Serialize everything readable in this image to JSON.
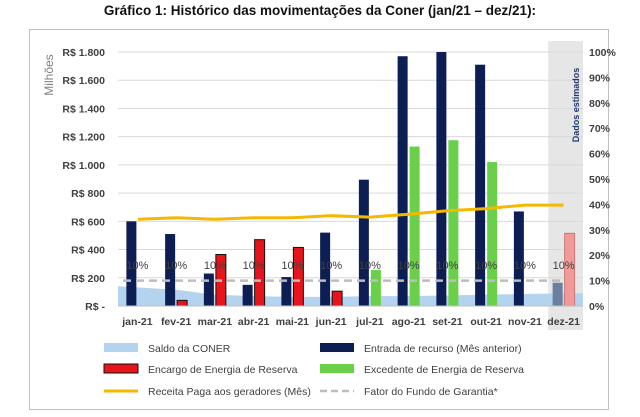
{
  "title": "Gráfico 1: Histórico das movimentações da Coner (jan/21 – dez/21):",
  "chart_data": {
    "type": "bar",
    "title": "Gráfico 1: Histórico das movimentações da Coner (jan/21 – dez/21):",
    "ylabel": "Milhões",
    "ylim": [
      0,
      1800
    ],
    "y2lim": [
      0,
      1
    ],
    "grid": true,
    "legend_position": "bottom",
    "estimated_label": "Dados estimados",
    "estimated_categories": [
      "dez-21"
    ],
    "categories": [
      "jan-21",
      "fev-21",
      "mar-21",
      "abr-21",
      "mai-21",
      "jun-21",
      "jul-21",
      "ago-21",
      "set-21",
      "out-21",
      "nov-21",
      "dez-21"
    ],
    "y_ticks": [
      {
        "value": 0,
        "label": "R$ -"
      },
      {
        "value": 200,
        "label": "R$ 200"
      },
      {
        "value": 400,
        "label": "R$ 400"
      },
      {
        "value": 600,
        "label": "R$ 600"
      },
      {
        "value": 800,
        "label": "R$ 800"
      },
      {
        "value": 1000,
        "label": "R$ 1.000"
      },
      {
        "value": 1200,
        "label": "R$ 1.200"
      },
      {
        "value": 1400,
        "label": "R$ 1.400"
      },
      {
        "value": 1600,
        "label": "R$ 1.600"
      },
      {
        "value": 1800,
        "label": "R$ 1.800"
      }
    ],
    "y2_ticks": [
      {
        "value": 0,
        "label": "0%"
      },
      {
        "value": 0.1,
        "label": "10%"
      },
      {
        "value": 0.2,
        "label": "20%"
      },
      {
        "value": 0.3,
        "label": "30%"
      },
      {
        "value": 0.4,
        "label": "40%"
      },
      {
        "value": 0.5,
        "label": "50%"
      },
      {
        "value": 0.6,
        "label": "60%"
      },
      {
        "value": 0.7,
        "label": "70%"
      },
      {
        "value": 0.8,
        "label": "80%"
      },
      {
        "value": 0.9,
        "label": "90%"
      },
      {
        "value": 1.0,
        "label": "100%"
      }
    ],
    "series": [
      {
        "name": "Saldo da CONER",
        "kind": "area",
        "axis": "left",
        "color": "#b4d3ee",
        "values": [
          140,
          115,
          80,
          70,
          65,
          65,
          70,
          70,
          75,
          80,
          85,
          90
        ]
      },
      {
        "name": "Entrada de recurso (Mês anterior)",
        "kind": "bar",
        "axis": "left",
        "color": "#0c1e54",
        "values": [
          600,
          510,
          230,
          150,
          205,
          520,
          895,
          1770,
          1800,
          1710,
          670,
          165
        ]
      },
      {
        "name": "Encargo de Energia de Reserva",
        "kind": "bar",
        "axis": "left",
        "color": "#e8141b",
        "values": [
          0,
          40,
          365,
          470,
          415,
          105,
          0,
          0,
          0,
          0,
          0,
          515
        ]
      },
      {
        "name": "Excedente de Energia de Reserva",
        "kind": "bar",
        "axis": "left",
        "color": "#6ad04a",
        "values": [
          0,
          0,
          0,
          0,
          0,
          0,
          255,
          1130,
          1175,
          1020,
          0,
          0
        ]
      },
      {
        "name": "Receita Paga aos geradores (Mês)",
        "kind": "line",
        "axis": "left",
        "color": "#f5b800",
        "values": [
          615,
          625,
          615,
          625,
          625,
          640,
          630,
          650,
          675,
          690,
          715,
          715
        ]
      },
      {
        "name": "Fator do Fundo de Garantia*",
        "kind": "dashed",
        "axis": "right",
        "color": "#bdbdbd",
        "values": [
          0.1,
          0.1,
          0.1,
          0.1,
          0.1,
          0.1,
          0.1,
          0.1,
          0.1,
          0.1,
          0.1,
          0.1
        ]
      }
    ],
    "fator_labels": [
      "10%",
      "10%",
      "10%",
      "10%",
      "10%",
      "10%",
      "10%",
      "10%",
      "10%",
      "10%",
      "10%",
      "10%"
    ]
  }
}
